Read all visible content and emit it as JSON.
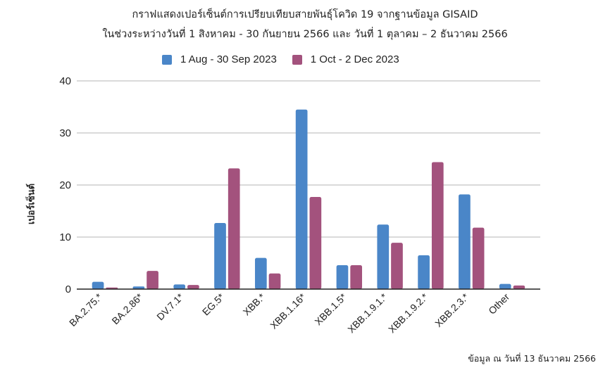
{
  "title_line1": "กราฟแสดงเปอร์เซ็นต์การเปรียบเทียบสายพันธุ์โควิด 19 จากฐานข้อมูล GISAID",
  "title_line2": "ในช่วงระหว่างวันที่ 1 สิงหาคม - 30 กันยายน 2566 และ วันที่ 1 ตุลาคม – 2 ธันวาคม 2566",
  "legend": [
    {
      "label": "1 Aug - 30 Sep 2023",
      "color": "#4a86c8"
    },
    {
      "label": "1 Oct - 2 Dec 2023",
      "color": "#a3527d"
    }
  ],
  "ylabel": "เปอร์เซ็นต์",
  "footnote": "ข้อมูล ณ วันที่ 13 ธันวาคม 2566",
  "chart_data": {
    "type": "bar",
    "title": "กราฟแสดงเปอร์เซ็นต์การเปรียบเทียบสายพันธุ์โควิด 19 จากฐานข้อมูล GISAID ในช่วงระหว่างวันที่ 1 สิงหาคม - 30 กันยายน 2566 และ วันที่ 1 ตุลาคม – 2 ธันวาคม 2566",
    "xlabel": "",
    "ylabel": "เปอร์เซ็นต์",
    "ylim": [
      0,
      40
    ],
    "yticks": [
      0,
      10,
      20,
      30,
      40
    ],
    "grid": true,
    "legend_position": "top",
    "categories": [
      "BA.2.75.*",
      "BA.2.86*",
      "DV.7.1*",
      "EG.5*",
      "XBB.*",
      "XBB.1.16*",
      "XBB.1.5*",
      "XBB.1.9.1.*",
      "XBB.1.9.2.*",
      "XBB.2.3.*",
      "Other"
    ],
    "series": [
      {
        "name": "1 Aug - 30 Sep 2023",
        "color": "#4a86c8",
        "values": [
          1.4,
          0.5,
          0.9,
          12.7,
          6.0,
          34.5,
          4.6,
          12.4,
          6.5,
          18.2,
          1.0
        ]
      },
      {
        "name": "1 Oct - 2 Dec 2023",
        "color": "#a3527d",
        "values": [
          0.3,
          3.5,
          0.8,
          23.2,
          3.0,
          17.7,
          4.6,
          8.9,
          24.4,
          11.8,
          0.7
        ]
      }
    ]
  }
}
